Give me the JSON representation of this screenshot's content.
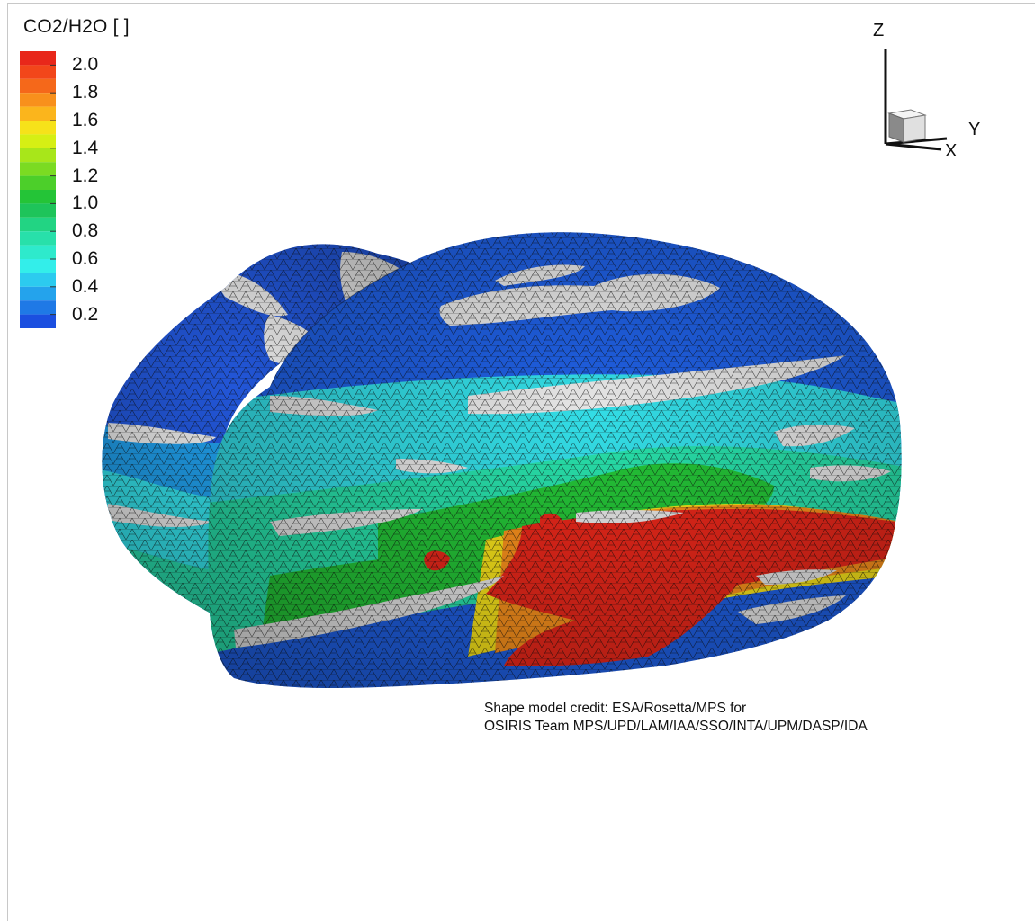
{
  "chart_data": {
    "type": "heatmap",
    "title": "CO2/H2O [ ]",
    "colorbar": {
      "min": 0.1,
      "max": 2.1,
      "tick_labels": [
        "2.0",
        "1.8",
        "1.6",
        "1.4",
        "1.2",
        "1.0",
        "0.8",
        "0.6",
        "0.4",
        "0.2"
      ],
      "tick_values": [
        2.0,
        1.8,
        1.6,
        1.4,
        1.2,
        1.0,
        0.8,
        0.6,
        0.4,
        0.2
      ],
      "bands": [
        {
          "from": 2.0,
          "to": 2.1,
          "color": "#e8271a"
        },
        {
          "from": 1.9,
          "to": 2.0,
          "color": "#f2461a"
        },
        {
          "from": 1.8,
          "to": 1.9,
          "color": "#f5681a"
        },
        {
          "from": 1.7,
          "to": 1.8,
          "color": "#f8901c"
        },
        {
          "from": 1.6,
          "to": 1.7,
          "color": "#fbb51c"
        },
        {
          "from": 1.5,
          "to": 1.6,
          "color": "#f6e21a"
        },
        {
          "from": 1.4,
          "to": 1.5,
          "color": "#d6ef14"
        },
        {
          "from": 1.3,
          "to": 1.4,
          "color": "#a8e61a"
        },
        {
          "from": 1.2,
          "to": 1.3,
          "color": "#7bdb22"
        },
        {
          "from": 1.1,
          "to": 1.2,
          "color": "#4ccf2a"
        },
        {
          "from": 1.0,
          "to": 1.1,
          "color": "#24c437"
        },
        {
          "from": 0.9,
          "to": 1.0,
          "color": "#1ec45a"
        },
        {
          "from": 0.8,
          "to": 0.9,
          "color": "#22d483"
        },
        {
          "from": 0.7,
          "to": 0.8,
          "color": "#28e0aa"
        },
        {
          "from": 0.6,
          "to": 0.7,
          "color": "#2eeacc"
        },
        {
          "from": 0.5,
          "to": 0.6,
          "color": "#33eeea"
        },
        {
          "from": 0.4,
          "to": 0.5,
          "color": "#2ccbef"
        },
        {
          "from": 0.3,
          "to": 0.4,
          "color": "#24a3ec"
        },
        {
          "from": 0.2,
          "to": 0.3,
          "color": "#1f79e6"
        },
        {
          "from": 0.1,
          "to": 0.2,
          "color": "#1b4fe0"
        }
      ]
    },
    "axes_triad": {
      "z": "Z",
      "y": "Y",
      "x": "X"
    },
    "surface_regions": [
      {
        "region": "upper body and small lobe",
        "value": 0.2,
        "color": "#1f5fe2"
      },
      {
        "region": "mid band",
        "value": 0.6,
        "color": "#33dde6"
      },
      {
        "region": "lower-middle band",
        "value": 1.0,
        "color": "#24c437"
      },
      {
        "region": "lower-right neck region",
        "value": 2.0,
        "color": "#e8271a"
      }
    ],
    "no_data_color": "#e6e6e6"
  },
  "credit": {
    "line1": "Shape model credit: ESA/Rosetta/MPS for",
    "line2": "OSIRIS Team MPS/UPD/LAM/IAA/SSO/INTA/UPM/DASP/IDA"
  }
}
